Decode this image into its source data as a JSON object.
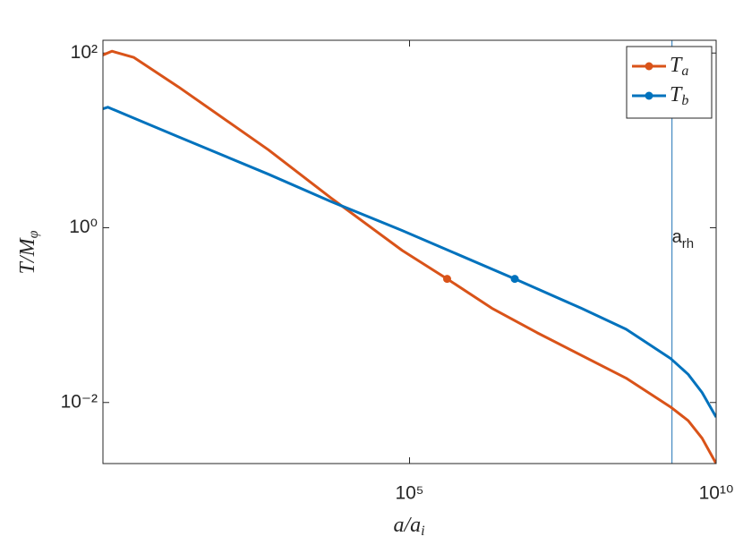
{
  "chart_data": {
    "type": "line",
    "xlabel": "a/a",
    "xlabel_sub": "i",
    "ylabel": "T/M",
    "ylabel_sub": "φ",
    "xscale": "log",
    "yscale": "log",
    "xlim": [
      1,
      10000000000
    ],
    "ylim": [
      0.002,
      140
    ],
    "xticks": [
      {
        "value": 100000,
        "label": "10⁵"
      },
      {
        "value": 10000000000,
        "label": "10¹⁰"
      }
    ],
    "yticks": [
      {
        "value": 0.01,
        "label": "10⁻²"
      },
      {
        "value": 1,
        "label": "10⁰"
      },
      {
        "value": 100,
        "label": "10²"
      }
    ],
    "legend": "top-right",
    "series": [
      {
        "name": "T",
        "name_sub": "a",
        "color": "#d95319",
        "x": [
          1,
          1.4,
          3.2,
          17,
          500,
          5200,
          76000,
          410000,
          2200000,
          12000000,
          340000000,
          1800000000,
          3500000000,
          5900000000,
          10000000000
        ],
        "values": [
          95,
          105,
          89,
          41,
          7.8,
          2.2,
          0.55,
          0.26,
          0.12,
          0.063,
          0.019,
          0.0089,
          0.0062,
          0.0039,
          0.002
        ],
        "marker": {
          "x": 410000,
          "y": 0.26
        }
      },
      {
        "name": "T",
        "name_sub": "b",
        "color": "#0072bd",
        "x": [
          1,
          1.2,
          17,
          500,
          5200,
          76000,
          5200000,
          63000000,
          340000000,
          1800000000,
          3500000000,
          5900000000,
          10000000000
        ],
        "values": [
          23,
          24,
          11,
          4.1,
          2.0,
          0.93,
          0.26,
          0.12,
          0.069,
          0.032,
          0.021,
          0.013,
          0.0068
        ],
        "marker": {
          "x": 5200000,
          "y": 0.26
        }
      }
    ],
    "vline": {
      "x": 1900000000,
      "color": "#4d8fc4",
      "label": "a",
      "label_sub": "rh"
    }
  }
}
